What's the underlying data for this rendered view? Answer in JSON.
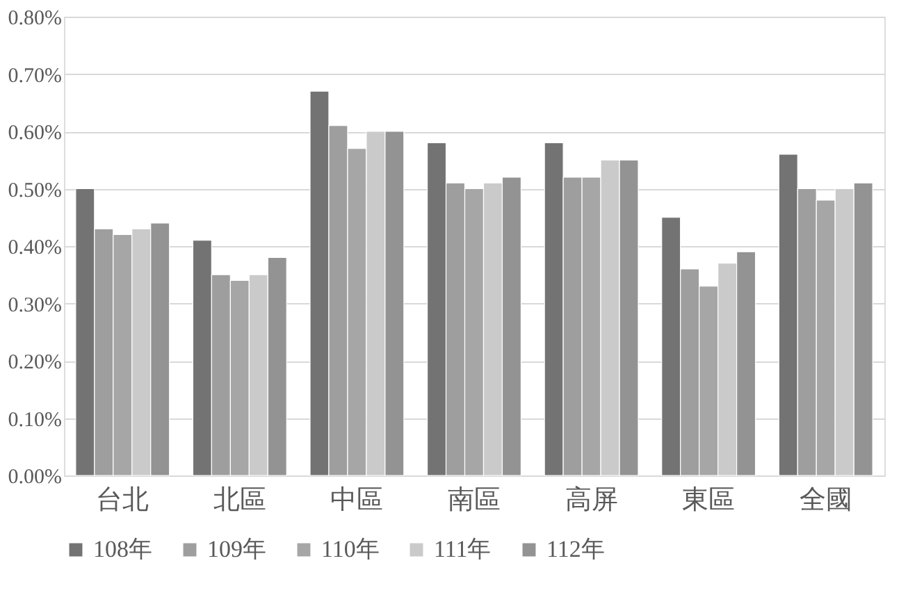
{
  "chart_data": {
    "type": "bar",
    "categories": [
      "台北",
      "北區",
      "中區",
      "南區",
      "高屏",
      "東區",
      "全國"
    ],
    "series": [
      {
        "name": "108年",
        "color": "#737373",
        "values": [
          0.5,
          0.41,
          0.67,
          0.58,
          0.58,
          0.45,
          0.56
        ]
      },
      {
        "name": "109年",
        "color": "#9e9e9e",
        "values": [
          0.43,
          0.35,
          0.61,
          0.51,
          0.52,
          0.36,
          0.5
        ]
      },
      {
        "name": "110年",
        "color": "#a6a6a6",
        "values": [
          0.42,
          0.34,
          0.57,
          0.5,
          0.52,
          0.33,
          0.48
        ]
      },
      {
        "name": "111年",
        "color": "#cacaca",
        "values": [
          0.43,
          0.35,
          0.6,
          0.51,
          0.55,
          0.37,
          0.5
        ]
      },
      {
        "name": "112年",
        "color": "#939393",
        "values": [
          0.44,
          0.38,
          0.6,
          0.52,
          0.55,
          0.39,
          0.51
        ]
      }
    ],
    "ylim": [
      0,
      0.8
    ],
    "yticks": [
      {
        "value": 0,
        "label": "0.00%"
      },
      {
        "value": 0.1,
        "label": "0.10%"
      },
      {
        "value": 0.2,
        "label": "0.20%"
      },
      {
        "value": 0.3,
        "label": "0.30%"
      },
      {
        "value": 0.4,
        "label": "0.40%"
      },
      {
        "value": 0.5,
        "label": "0.50%"
      },
      {
        "value": 0.6,
        "label": "0.60%"
      },
      {
        "value": 0.7,
        "label": "0.70%"
      },
      {
        "value": 0.8,
        "label": "0.80%"
      }
    ],
    "grid": "y",
    "legend": "bottom"
  }
}
